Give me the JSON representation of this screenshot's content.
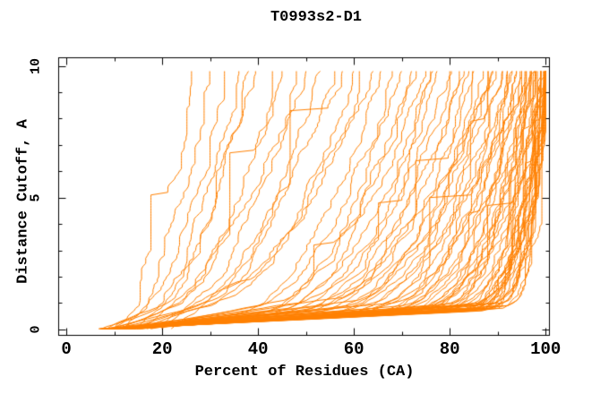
{
  "page": {
    "background": "#ffffff"
  },
  "chart_data": {
    "type": "line",
    "title": "T0993s2-D1",
    "xlabel": "Percent of Residues (CA)",
    "ylabel": "Distance Cutoff, A",
    "xlim": [
      -1.6,
      100.8
    ],
    "ylim": [
      -0.23,
      10.31
    ],
    "x_ticks_major": [
      0,
      20,
      40,
      60,
      80,
      100
    ],
    "x_tick_labels": [
      "0",
      "20",
      "40",
      "60",
      "80",
      "100"
    ],
    "x_ticks_minor": [
      10,
      30,
      50,
      70,
      90
    ],
    "y_ticks_major": [
      0,
      5,
      10
    ],
    "y_tick_labels": [
      "0",
      "5",
      "10"
    ],
    "y_ticks_minor": [
      1,
      2,
      3,
      4,
      6,
      7,
      8,
      9
    ],
    "grid": false,
    "legend": null,
    "line_color": "#ff8000",
    "frame_color": "#000000",
    "n_curves": 88,
    "curve_y_start": 0.02,
    "curve_y_end": 9.8,
    "curve_y_step": 0.1,
    "noise_amplitude": 1.1,
    "series_params": {
      "format": [
        "x_at_y0",
        "x_knee",
        "y_knee",
        "x_at_top",
        "shape_exp",
        "seed"
      ],
      "curves": [
        [
          10,
          14,
          0.8,
          27,
          0.85,
          1
        ],
        [
          8,
          16,
          0.7,
          30,
          0.8,
          2
        ],
        [
          12,
          18,
          1.0,
          33,
          0.75,
          3
        ],
        [
          9,
          20,
          0.9,
          36,
          0.8,
          4
        ],
        [
          14,
          22,
          1.2,
          38,
          0.7,
          5
        ],
        [
          7,
          18,
          0.6,
          40,
          0.75,
          6
        ],
        [
          16,
          26,
          1.5,
          43,
          0.65,
          7
        ],
        [
          11,
          24,
          1.0,
          45,
          0.7,
          8
        ],
        [
          20,
          28,
          1.4,
          48,
          0.65,
          9
        ],
        [
          9,
          22,
          0.8,
          50,
          0.7,
          10
        ],
        [
          13,
          30,
          1.1,
          53,
          0.62,
          11
        ],
        [
          18,
          32,
          1.5,
          56,
          0.6,
          12
        ],
        [
          8,
          26,
          0.7,
          58,
          0.66,
          13
        ],
        [
          15,
          34,
          1.2,
          60,
          0.58,
          14
        ],
        [
          22,
          36,
          1.8,
          62,
          0.55,
          15
        ],
        [
          10,
          28,
          0.8,
          64,
          0.62,
          16
        ],
        [
          7,
          36,
          0.6,
          66,
          0.55,
          17
        ],
        [
          12,
          38,
          0.8,
          68,
          0.52,
          18
        ],
        [
          9,
          40,
          0.65,
          70,
          0.5,
          19
        ],
        [
          16,
          42,
          1.0,
          72,
          0.48,
          20
        ],
        [
          8,
          38,
          0.55,
          73,
          0.52,
          21
        ],
        [
          11,
          44,
          0.75,
          75,
          0.5,
          22
        ],
        [
          14,
          46,
          0.95,
          76,
          0.46,
          23
        ],
        [
          6,
          40,
          0.5,
          77,
          0.5,
          24
        ],
        [
          10,
          48,
          0.7,
          78,
          0.46,
          25
        ],
        [
          13,
          50,
          0.85,
          80,
          0.44,
          26
        ],
        [
          8,
          44,
          0.6,
          81,
          0.48,
          27
        ],
        [
          17,
          52,
          1.1,
          82,
          0.42,
          28
        ],
        [
          9,
          46,
          0.6,
          83,
          0.46,
          29
        ],
        [
          12,
          54,
          0.8,
          84,
          0.42,
          30
        ],
        [
          7,
          48,
          0.55,
          85,
          0.46,
          31
        ],
        [
          15,
          56,
          1.0,
          86,
          0.4,
          32
        ],
        [
          10,
          50,
          0.65,
          87,
          0.44,
          33
        ],
        [
          8,
          52,
          0.6,
          88,
          0.42,
          34
        ],
        [
          13,
          58,
          0.85,
          88,
          0.4,
          35
        ],
        [
          6,
          42,
          0.5,
          89,
          0.46,
          36
        ],
        [
          11,
          60,
          0.75,
          90,
          0.38,
          37
        ],
        [
          9,
          52,
          0.6,
          90,
          0.42,
          38
        ],
        [
          14,
          62,
          0.9,
          91,
          0.36,
          39
        ],
        [
          7,
          54,
          0.55,
          91,
          0.4,
          40
        ],
        [
          12,
          64,
          0.8,
          92,
          0.35,
          41
        ],
        [
          10,
          56,
          0.65,
          92,
          0.38,
          42
        ],
        [
          5,
          58,
          0.55,
          93,
          0.42,
          43
        ],
        [
          8,
          62,
          0.6,
          93,
          0.4,
          44
        ],
        [
          11,
          66,
          0.7,
          94,
          0.38,
          45
        ],
        [
          6,
          60,
          0.55,
          94,
          0.4,
          46
        ],
        [
          9,
          68,
          0.7,
          95,
          0.36,
          47
        ],
        [
          13,
          70,
          0.8,
          95,
          0.34,
          48
        ],
        [
          7,
          64,
          0.6,
          95,
          0.38,
          49
        ],
        [
          10,
          72,
          0.75,
          96,
          0.33,
          50
        ],
        [
          5,
          62,
          0.55,
          96,
          0.38,
          51
        ],
        [
          12,
          74,
          0.85,
          96,
          0.32,
          52
        ],
        [
          8,
          68,
          0.65,
          97,
          0.35,
          53
        ],
        [
          6,
          66,
          0.6,
          97,
          0.36,
          54
        ],
        [
          14,
          76,
          0.9,
          97,
          0.3,
          55
        ],
        [
          9,
          70,
          0.7,
          97,
          0.33,
          56
        ],
        [
          7,
          72,
          0.65,
          98,
          0.32,
          57
        ],
        [
          11,
          78,
          0.85,
          98,
          0.29,
          58
        ],
        [
          5,
          68,
          0.6,
          98,
          0.34,
          59
        ],
        [
          10,
          74,
          0.75,
          98,
          0.31,
          60
        ],
        [
          8,
          76,
          0.7,
          98,
          0.3,
          61
        ],
        [
          13,
          80,
          0.9,
          99,
          0.27,
          62
        ],
        [
          6,
          70,
          0.6,
          99,
          0.33,
          63
        ],
        [
          9,
          78,
          0.75,
          99,
          0.29,
          64
        ],
        [
          7,
          74,
          0.65,
          99,
          0.31,
          65
        ],
        [
          12,
          82,
          0.9,
          99,
          0.26,
          66
        ],
        [
          5,
          72,
          0.6,
          99,
          0.32,
          67
        ],
        [
          10,
          80,
          0.8,
          99,
          0.28,
          68
        ],
        [
          8,
          78,
          0.7,
          100,
          0.28,
          69
        ],
        [
          6,
          76,
          0.65,
          100,
          0.3,
          70
        ],
        [
          11,
          84,
          0.9,
          100,
          0.25,
          71
        ],
        [
          9,
          82,
          0.75,
          100,
          0.26,
          72
        ],
        [
          7,
          80,
          0.7,
          100,
          0.28,
          73
        ],
        [
          13,
          86,
          0.95,
          100,
          0.24,
          74
        ],
        [
          5,
          78,
          0.65,
          100,
          0.28,
          75
        ],
        [
          10,
          84,
          0.8,
          100,
          0.25,
          76
        ],
        [
          8,
          82,
          0.7,
          100,
          0.26,
          77
        ],
        [
          6,
          80,
          0.65,
          100,
          0.28,
          78
        ],
        [
          12,
          86,
          0.9,
          100,
          0.24,
          79
        ],
        [
          9,
          84,
          0.75,
          100,
          0.25,
          80
        ],
        [
          7,
          82,
          0.7,
          100,
          0.26,
          81
        ],
        [
          11,
          88,
          0.85,
          100,
          0.23,
          82
        ],
        [
          5,
          80,
          0.65,
          100,
          0.28,
          83
        ],
        [
          8,
          84,
          0.7,
          100,
          0.25,
          84
        ],
        [
          10,
          88,
          0.8,
          100,
          0.23,
          85
        ],
        [
          6,
          82,
          0.65,
          100,
          0.26,
          86
        ],
        [
          9,
          88,
          0.75,
          100,
          0.23,
          87
        ],
        [
          7,
          86,
          0.7,
          100,
          0.24,
          88
        ]
      ]
    }
  }
}
